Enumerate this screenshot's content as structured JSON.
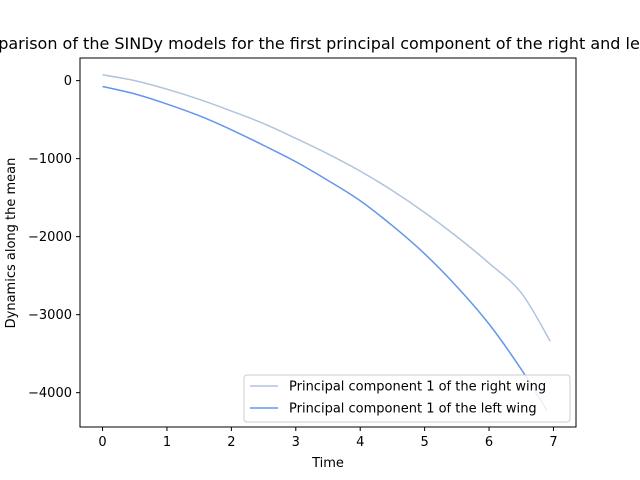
{
  "chart_data": {
    "type": "line",
    "title": "Comparison of the SINDy models for the first principal component of the right and left wing",
    "xlabel": "Time",
    "ylabel": "Dynamics along the mean",
    "xlim": [
      -0.35,
      7.35
    ],
    "ylim": [
      -4440,
      290
    ],
    "x_ticks": [
      0,
      1,
      2,
      3,
      4,
      5,
      6,
      7
    ],
    "y_ticks": [
      0,
      -1000,
      -2000,
      -3000,
      -4000
    ],
    "x_tick_labels": [
      "0",
      "1",
      "2",
      "3",
      "4",
      "5",
      "6",
      "7"
    ],
    "y_tick_labels": [
      "0",
      "−1000",
      "−2000",
      "−3000",
      "−4000"
    ],
    "grid": false,
    "legend_position": "lower-right",
    "series": [
      {
        "name": "Principal component 1 of the right wing",
        "color": "#b0c4de",
        "x": [
          0,
          0.5,
          1,
          1.5,
          2,
          2.5,
          3,
          3.5,
          4,
          4.5,
          5,
          5.5,
          6,
          6.5,
          6.95
        ],
        "y": [
          75,
          0,
          -110,
          -240,
          -390,
          -550,
          -740,
          -940,
          -1160,
          -1410,
          -1690,
          -2000,
          -2340,
          -2720,
          -3340
        ]
      },
      {
        "name": "Principal component 1 of the left wing",
        "color": "#6495ed",
        "x": [
          0,
          0.5,
          1,
          1.5,
          2,
          2.5,
          3,
          3.5,
          4,
          4.5,
          5,
          5.5,
          6,
          6.5,
          6.9
        ],
        "y": [
          -75,
          -170,
          -300,
          -450,
          -630,
          -830,
          -1040,
          -1280,
          -1540,
          -1860,
          -2220,
          -2640,
          -3120,
          -3700,
          -4230
        ]
      }
    ]
  }
}
